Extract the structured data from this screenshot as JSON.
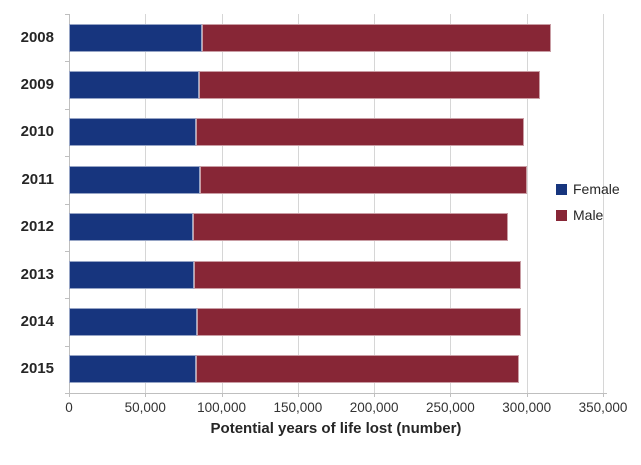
{
  "chart_data": {
    "type": "bar",
    "orientation": "horizontal",
    "stacked": true,
    "categories": [
      "2008",
      "2009",
      "2010",
      "2011",
      "2012",
      "2013",
      "2014",
      "2015"
    ],
    "series": [
      {
        "name": "Female",
        "color": "#17357E",
        "values": [
          87000,
          85000,
          83000,
          86000,
          81000,
          82000,
          84000,
          83000
        ]
      },
      {
        "name": "Male",
        "color": "#872636",
        "values": [
          229000,
          224000,
          215000,
          214000,
          207000,
          214000,
          212000,
          212000
        ]
      }
    ],
    "title": "",
    "xlabel": "Potential years of life lost (number)",
    "ylabel": "",
    "xlim": [
      0,
      350000
    ],
    "xticks": [
      0,
      50000,
      100000,
      150000,
      200000,
      250000,
      300000,
      350000
    ],
    "xtick_labels": [
      "0",
      "50,000",
      "100,000",
      "150,000",
      "200,000",
      "250,000",
      "300,000",
      "350,000"
    ],
    "grid": "vertical",
    "legend_position": "right"
  },
  "legend": {
    "items": [
      {
        "label": "Female",
        "color": "#17357E"
      },
      {
        "label": "Male",
        "color": "#872636"
      }
    ]
  },
  "colors": {
    "gridline": "#d6d6d6",
    "axis": "#bfbfbf",
    "text": "#262626"
  }
}
